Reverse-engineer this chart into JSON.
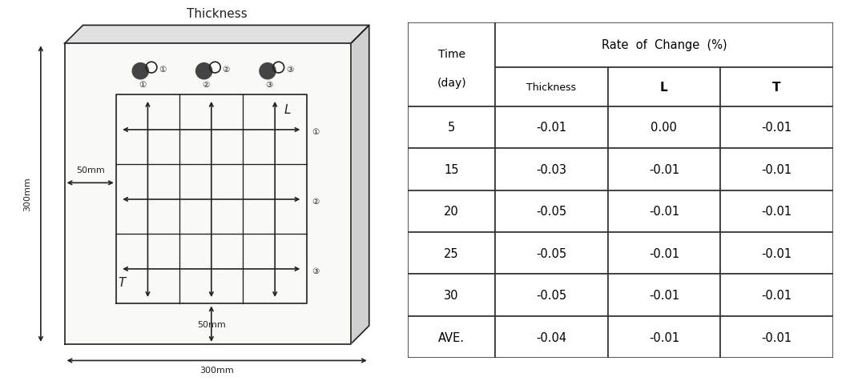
{
  "title": "Thickness",
  "bg_color": "#f8f8f8",
  "line_color": "#222222",
  "dim_label_300mm_left": "300mm",
  "dim_label_300mm_bottom": "300mm",
  "dim_label_50mm_left": "50mm",
  "dim_label_50mm_bottom": "50mm",
  "label_L": "L",
  "label_T": "T",
  "circled_numbers_top": [
    "①",
    "②",
    "③"
  ],
  "circled_numbers_right": [
    "①",
    "②",
    "③"
  ],
  "table_data": [
    [
      "5",
      "-0.01",
      "0.00",
      "-0.01"
    ],
    [
      "15",
      "-0.03",
      "-0.01",
      "-0.01"
    ],
    [
      "20",
      "-0.05",
      "-0.01",
      "-0.01"
    ],
    [
      "25",
      "-0.05",
      "-0.01",
      "-0.01"
    ],
    [
      "30",
      "-0.05",
      "-0.01",
      "-0.01"
    ],
    [
      "AVE.",
      "-0.04",
      "-0.01",
      "-0.01"
    ]
  ]
}
